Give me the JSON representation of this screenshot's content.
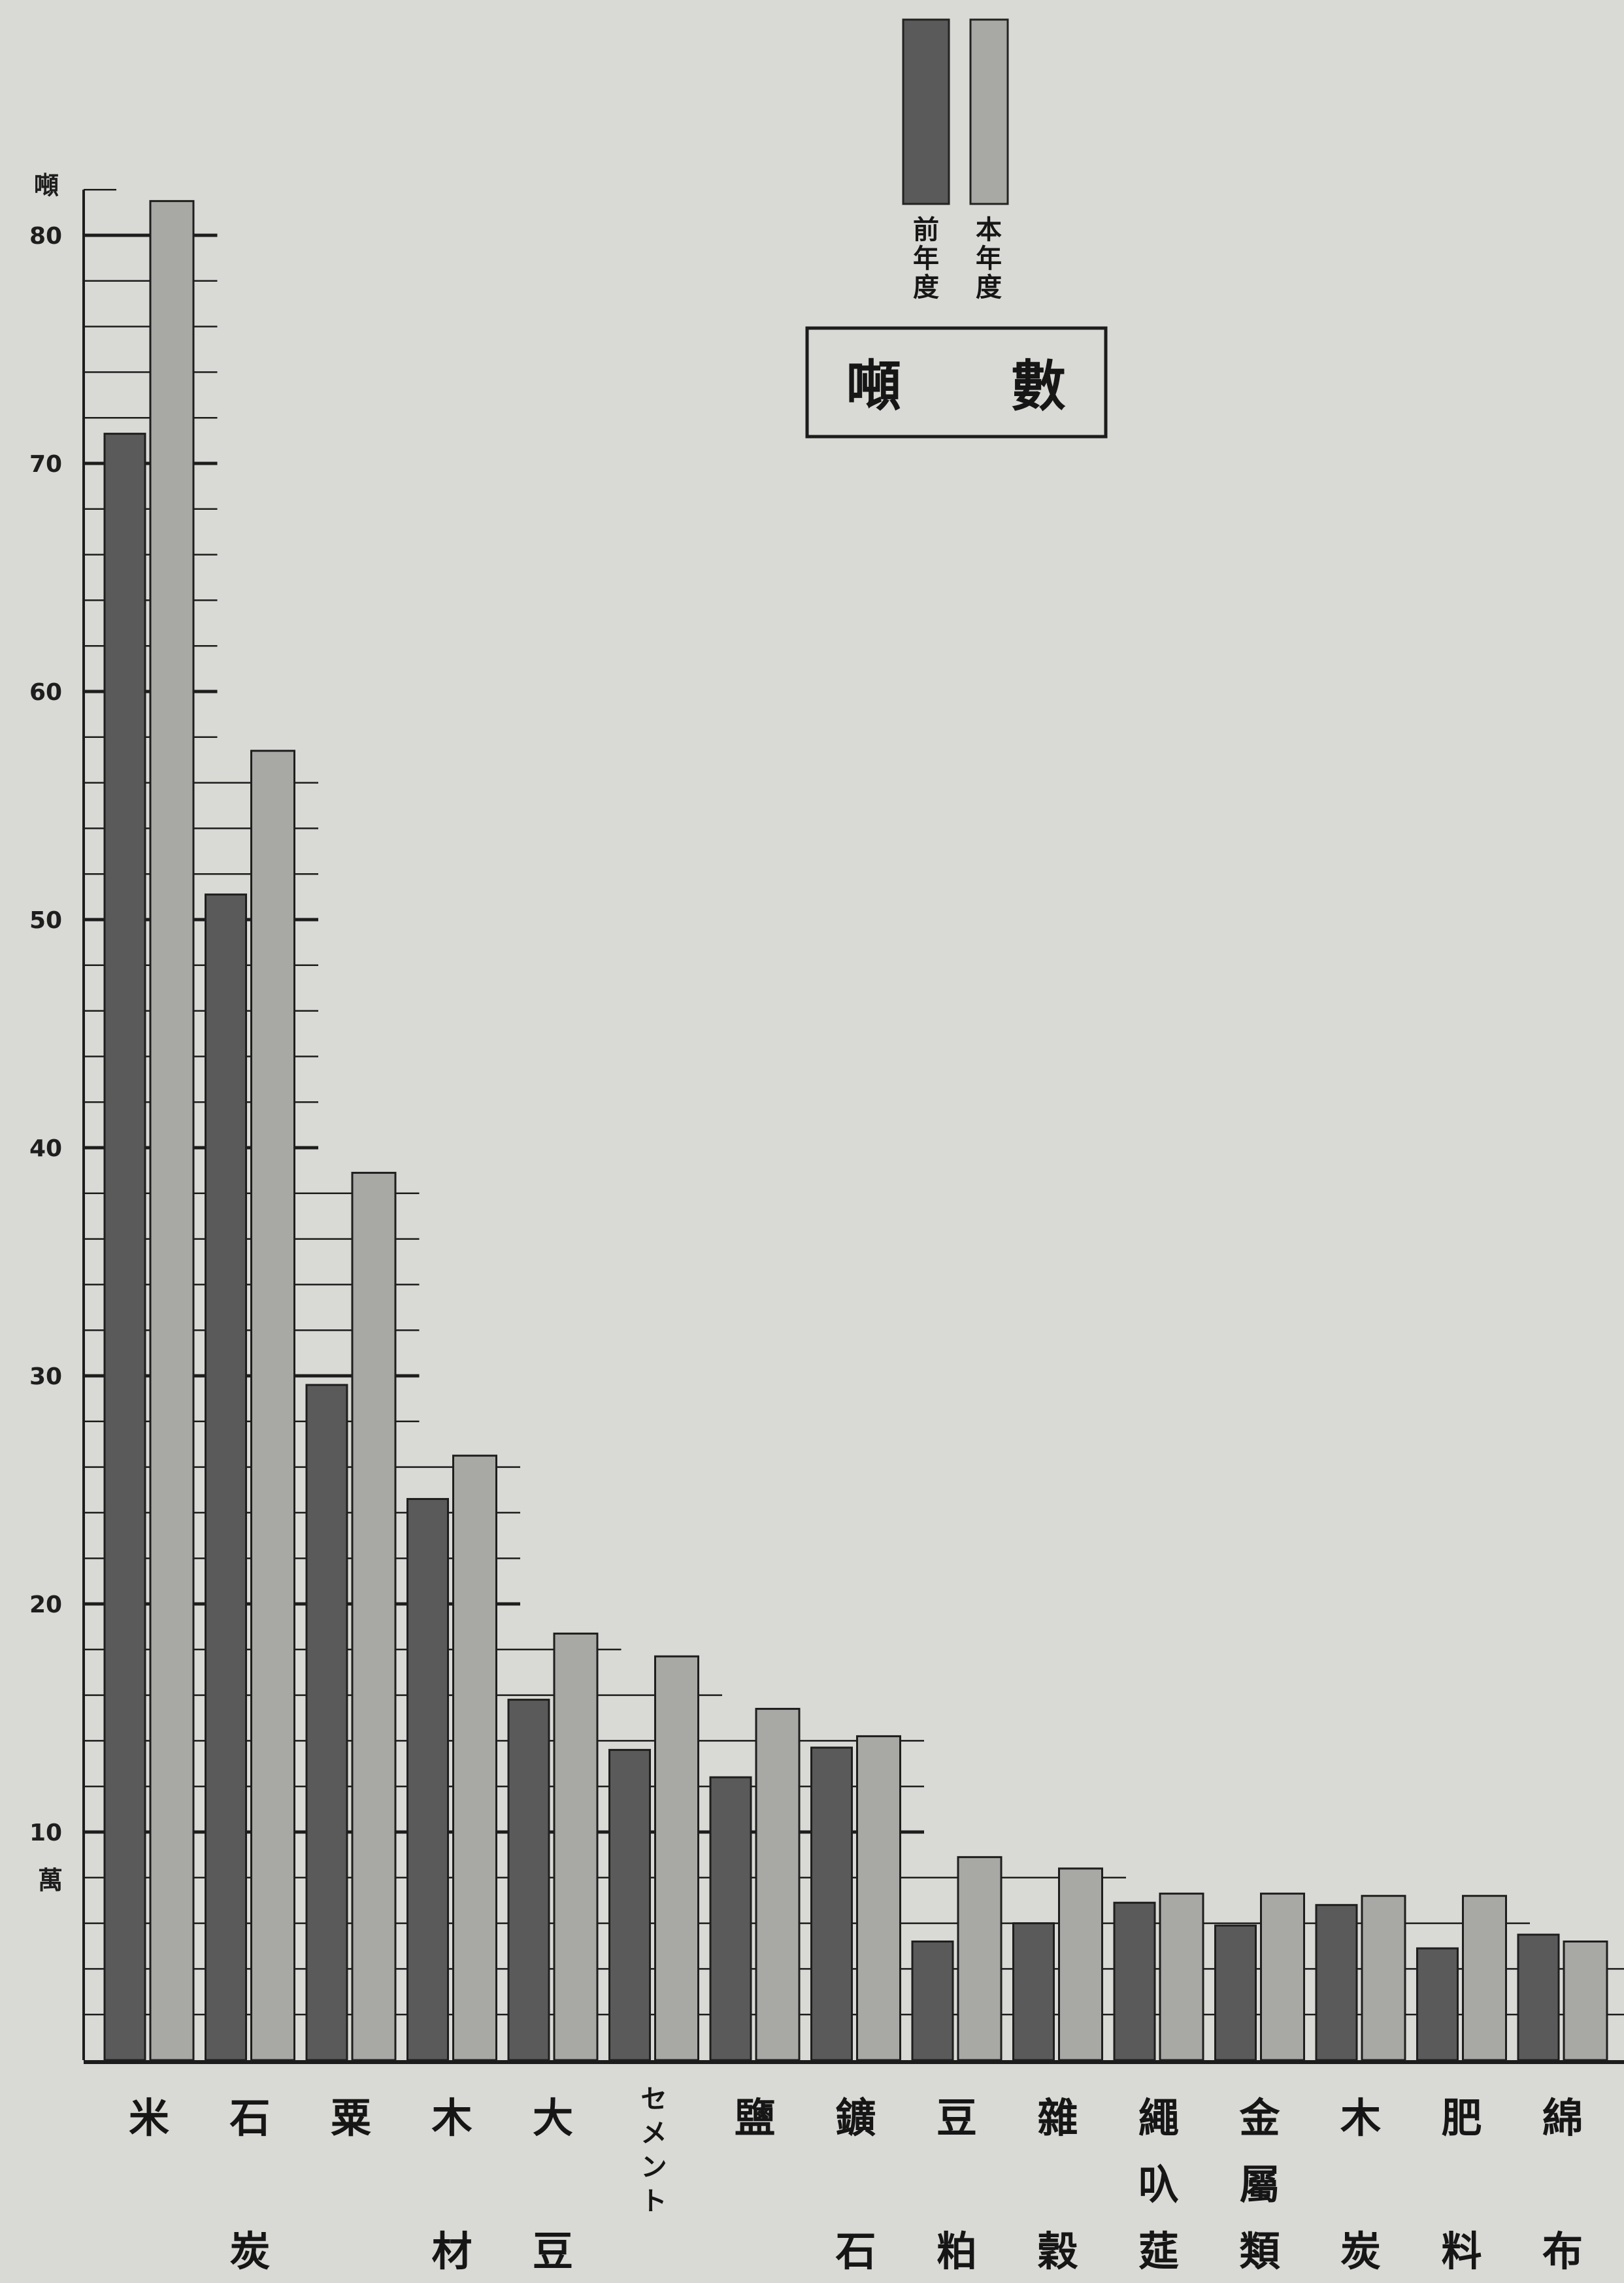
{
  "chart_data": {
    "type": "bar",
    "title": "噸　　數",
    "ylabel": "噸",
    "yunit": "萬",
    "ylim": [
      0,
      82
    ],
    "yticks": [
      10,
      20,
      30,
      40,
      50,
      60,
      70,
      80
    ],
    "legend_position": "top",
    "categories": [
      [
        "米"
      ],
      [
        "石",
        "炭"
      ],
      [
        "粟"
      ],
      [
        "木",
        "材"
      ],
      [
        "大",
        "豆"
      ],
      [
        "セメント"
      ],
      [
        "鹽"
      ],
      [
        "鑛",
        "石"
      ],
      [
        "豆",
        "粕"
      ],
      [
        "雜",
        "穀"
      ],
      [
        "繩",
        "叺",
        "莚"
      ],
      [
        "金",
        "屬",
        "類"
      ],
      [
        "木",
        "炭"
      ],
      [
        "肥",
        "料"
      ],
      [
        "綿",
        "布"
      ]
    ],
    "series": [
      {
        "name": "前年度",
        "color": "#5a5a5a",
        "values": [
          71.3,
          51.1,
          29.6,
          24.6,
          15.8,
          13.6,
          12.4,
          13.7,
          5.2,
          6.0,
          6.9,
          5.9,
          6.8,
          4.9,
          5.5
        ]
      },
      {
        "name": "本年度",
        "color": "#a8a8a5",
        "values": [
          81.5,
          57.4,
          38.9,
          26.5,
          18.7,
          17.7,
          15.4,
          14.2,
          8.9,
          8.4,
          7.3,
          7.3,
          7.2,
          7.2,
          5.2
        ]
      }
    ]
  }
}
